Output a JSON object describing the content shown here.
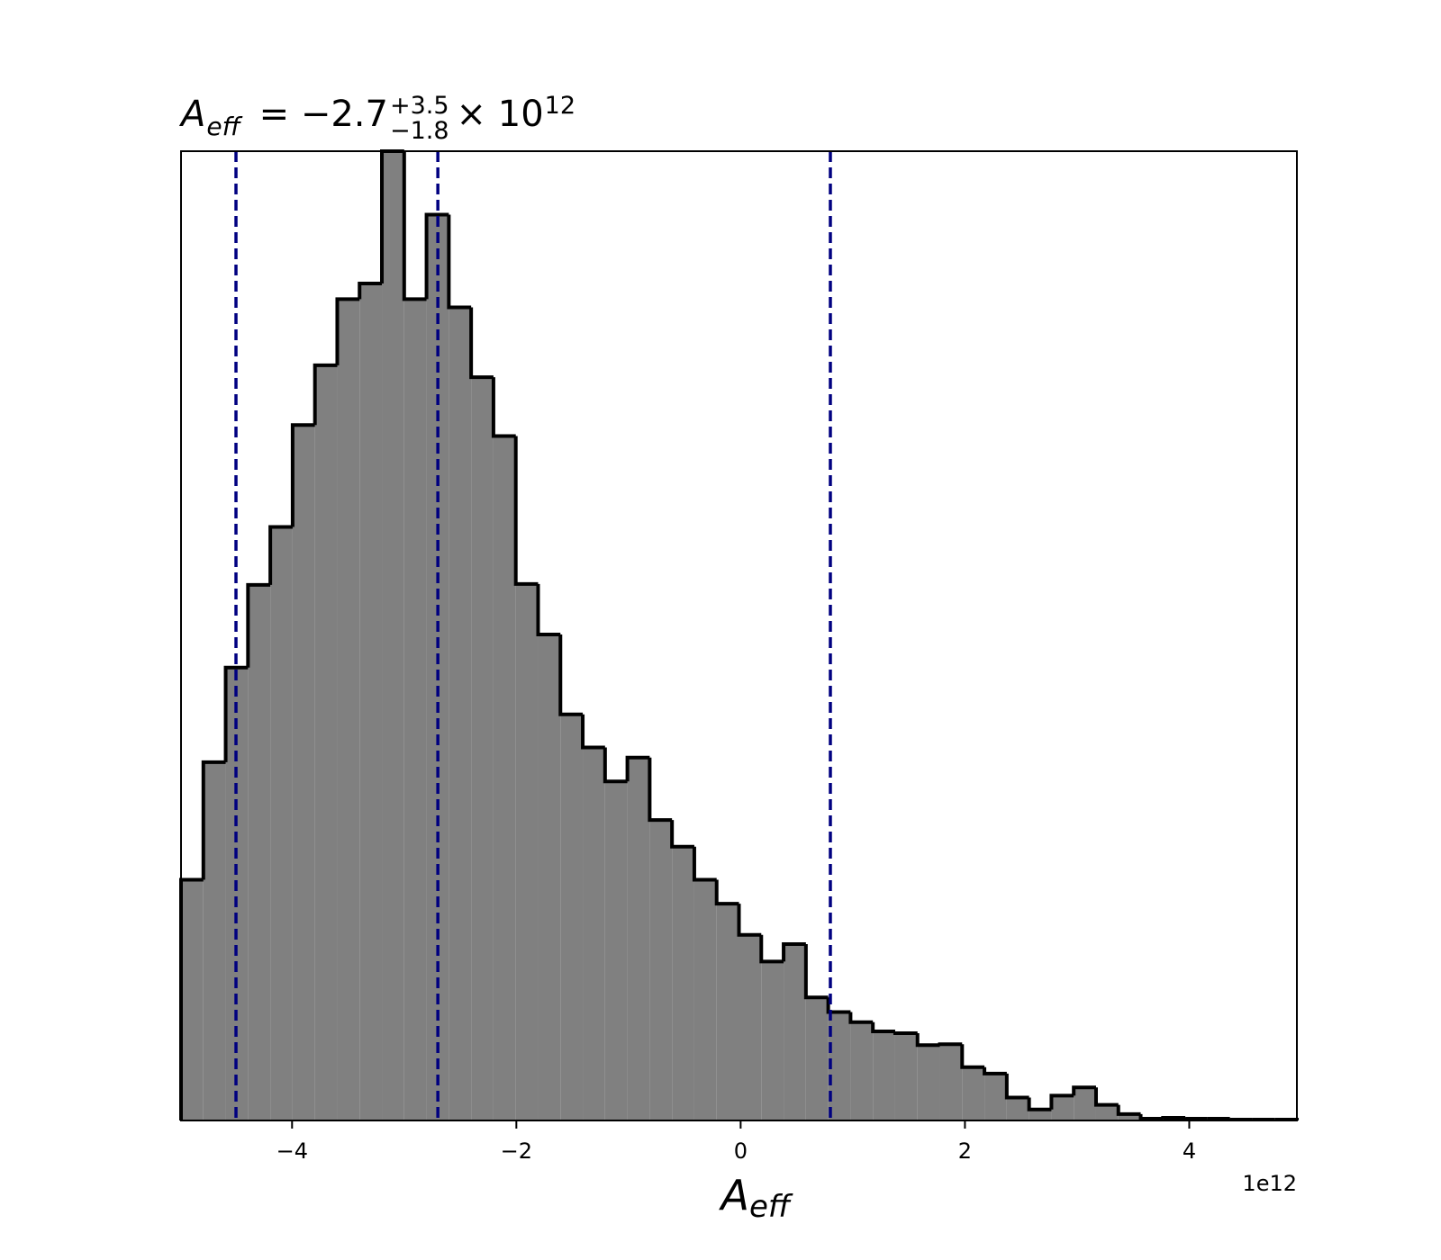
{
  "chart_data": {
    "type": "histogram",
    "title": {
      "symbol": "A",
      "subscript": "eff",
      "median": "= −2.7",
      "upper": "+3.5",
      "lower": "−1.8",
      "times": "× 10",
      "exponent": "12"
    },
    "x_label": {
      "symbol": "A",
      "subscript": "eff"
    },
    "x_offset_label": "1e12",
    "bins": [
      -4.99,
      -4.791,
      -4.592,
      -4.393,
      -4.194,
      -3.995,
      -3.796,
      -3.597,
      -3.398,
      -3.199,
      -3.0,
      -2.801,
      -2.602,
      -2.403,
      -2.204,
      -2.005,
      -1.806,
      -1.607,
      -1.408,
      -1.209,
      -1.01,
      -0.811,
      -0.612,
      -0.413,
      -0.214,
      -0.015,
      0.184,
      0.383,
      0.582,
      0.781,
      0.98,
      1.179,
      1.378,
      1.577,
      1.776,
      1.975,
      2.174,
      2.373,
      2.572,
      2.771,
      2.97,
      3.169,
      3.368,
      3.567,
      3.766,
      3.965,
      4.164,
      4.363,
      4.562,
      4.761,
      4.96
    ],
    "counts": [
      26.2,
      39.0,
      49.3,
      58.3,
      64.6,
      75.7,
      82.2,
      89.4,
      91.1,
      105.5,
      89.4,
      98.6,
      88.5,
      80.9,
      74.5,
      58.4,
      52.9,
      44.2,
      40.6,
      36.9,
      39.5,
      32.7,
      29.8,
      26.2,
      23.6,
      20.2,
      17.3,
      19.2,
      13.4,
      11.8,
      10.7,
      9.7,
      9.5,
      8.2,
      8.3,
      5.8,
      5.1,
      2.5,
      1.2,
      2.7,
      3.6,
      1.7,
      0.7,
      0.2,
      0.3,
      0.2,
      0.2,
      0.1,
      0.1,
      0.1
    ],
    "color": "#808080",
    "edgecolor": "#000000",
    "xlim": [
      -4.99,
      4.96
    ],
    "ylim": [
      0,
      105.5
    ],
    "xticks": [
      {
        "value": -4,
        "label": "−4"
      },
      {
        "value": -2,
        "label": "−2"
      },
      0,
      2,
      4
    ],
    "vlines": [
      -4.5,
      -2.7,
      0.8
    ],
    "vline_color": "#000080"
  }
}
